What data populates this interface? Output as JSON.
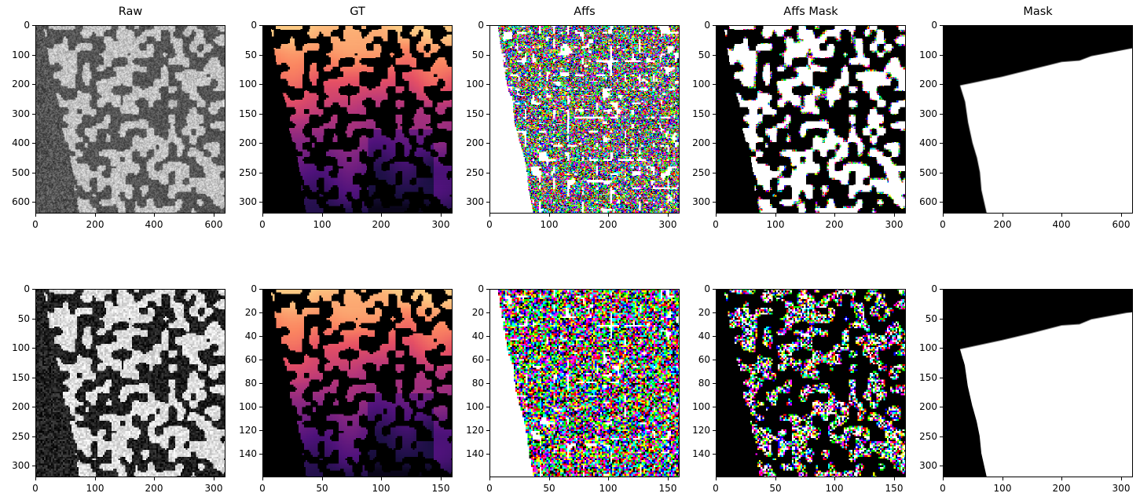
{
  "figure": {
    "titles": [
      "Raw",
      "GT",
      "Affs",
      "Affs Mask",
      "Mask"
    ]
  },
  "chart_data": [
    {
      "type": "heatmap",
      "row": 0,
      "col": 0,
      "title": "Raw",
      "colormap": "gray",
      "content": "noisy grayscale EM-like image, bright blob texture on right, dark noisy region on left",
      "xlim": [
        0,
        640
      ],
      "ylim": [
        640,
        0
      ],
      "xticks": [
        0,
        200,
        400,
        600
      ],
      "yticks": [
        0,
        100,
        200,
        300,
        400,
        500,
        600
      ]
    },
    {
      "type": "heatmap",
      "row": 0,
      "col": 1,
      "title": "GT",
      "colormap": "magma",
      "content": "label segmentation, color gradient from light orange (top) to dark purple (bottom), black background on left",
      "xlim": [
        0,
        320
      ],
      "ylim": [
        320,
        0
      ],
      "xticks": [
        0,
        100,
        200,
        300
      ],
      "yticks": [
        0,
        50,
        100,
        150,
        200,
        250,
        300
      ]
    },
    {
      "type": "heatmap",
      "row": 0,
      "col": 2,
      "title": "Affs",
      "colormap": "rgb",
      "content": "affinity map, colored (red/green/blue/cyan/magenta/yellow/black) strokes on white background",
      "xlim": [
        0,
        320
      ],
      "ylim": [
        320,
        0
      ],
      "xticks": [
        0,
        100,
        200,
        300
      ],
      "yticks": [
        0,
        50,
        100,
        150,
        200,
        250,
        300
      ]
    },
    {
      "type": "heatmap",
      "row": 0,
      "col": 3,
      "title": "Affs Mask",
      "colormap": "rgb",
      "content": "affinity mask, colored/white blobs on black background",
      "xlim": [
        0,
        320
      ],
      "ylim": [
        320,
        0
      ],
      "xticks": [
        0,
        100,
        200,
        300
      ],
      "yticks": [
        0,
        50,
        100,
        150,
        200,
        250,
        300
      ]
    },
    {
      "type": "heatmap",
      "row": 0,
      "col": 4,
      "title": "Mask",
      "colormap": "gray",
      "content": "binary mask: white quadrilateral region, black elsewhere",
      "xlim": [
        0,
        640
      ],
      "ylim": [
        640,
        0
      ],
      "xticks": [
        0,
        200,
        400,
        600
      ],
      "yticks": [
        0,
        100,
        200,
        300,
        400,
        500,
        600
      ],
      "polygon": [
        [
          58,
          205
        ],
        [
          200,
          175
        ],
        [
          300,
          150
        ],
        [
          400,
          125
        ],
        [
          460,
          120
        ],
        [
          500,
          105
        ],
        [
          640,
          78
        ],
        [
          640,
          640
        ],
        [
          148,
          640
        ],
        [
          130,
          560
        ],
        [
          125,
          500
        ],
        [
          115,
          450
        ],
        [
          100,
          400
        ],
        [
          85,
          330
        ],
        [
          75,
          260
        ]
      ]
    },
    {
      "type": "heatmap",
      "row": 1,
      "col": 0,
      "title": "",
      "colormap": "gray",
      "content": "downsampled raw, higher contrast bright blobs on black",
      "xlim": [
        0,
        320
      ],
      "ylim": [
        320,
        0
      ],
      "xticks": [
        0,
        100,
        200,
        300
      ],
      "yticks": [
        0,
        50,
        100,
        150,
        200,
        250,
        300
      ]
    },
    {
      "type": "heatmap",
      "row": 1,
      "col": 1,
      "title": "",
      "colormap": "magma",
      "content": "downsampled label segmentation",
      "xlim": [
        0,
        160
      ],
      "ylim": [
        160,
        0
      ],
      "xticks": [
        0,
        50,
        100,
        150
      ],
      "yticks": [
        0,
        20,
        40,
        60,
        80,
        100,
        120,
        140
      ]
    },
    {
      "type": "heatmap",
      "row": 1,
      "col": 2,
      "title": "",
      "colormap": "rgb",
      "content": "downsampled affinities, dense colored pixels on white",
      "xlim": [
        0,
        160
      ],
      "ylim": [
        160,
        0
      ],
      "xticks": [
        0,
        50,
        100,
        150
      ],
      "yticks": [
        0,
        20,
        40,
        60,
        80,
        100,
        120,
        140
      ]
    },
    {
      "type": "heatmap",
      "row": 1,
      "col": 3,
      "title": "",
      "colormap": "rgb",
      "content": "downsampled affinity mask, colored pixels on black",
      "xlim": [
        0,
        160
      ],
      "ylim": [
        160,
        0
      ],
      "xticks": [
        0,
        50,
        100,
        150
      ],
      "yticks": [
        0,
        20,
        40,
        60,
        80,
        100,
        120,
        140
      ]
    },
    {
      "type": "heatmap",
      "row": 1,
      "col": 4,
      "title": "",
      "colormap": "gray",
      "content": "downsampled binary mask",
      "xlim": [
        0,
        320
      ],
      "ylim": [
        320,
        0
      ],
      "xticks": [
        0,
        100,
        200,
        300
      ],
      "yticks": [
        0,
        50,
        100,
        150,
        200,
        250,
        300
      ],
      "polygon": [
        [
          29,
          102
        ],
        [
          100,
          87
        ],
        [
          150,
          75
        ],
        [
          200,
          62
        ],
        [
          230,
          60
        ],
        [
          250,
          52
        ],
        [
          320,
          39
        ],
        [
          320,
          320
        ],
        [
          74,
          320
        ],
        [
          65,
          280
        ],
        [
          62,
          250
        ],
        [
          57,
          225
        ],
        [
          50,
          200
        ],
        [
          42,
          165
        ],
        [
          37,
          130
        ]
      ]
    }
  ]
}
